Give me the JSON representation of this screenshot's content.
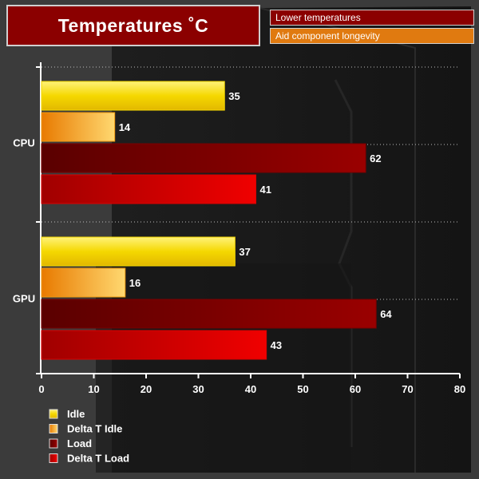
{
  "title": "Temperatures ˚C",
  "notes": [
    "Lower temperatures",
    "Aid component longevity"
  ],
  "colors": {
    "background": "#3b3b3b",
    "title_bg": "#8b0000",
    "note_orange": "#e07a10"
  },
  "chart_data": {
    "type": "bar",
    "orientation": "horizontal",
    "categories": [
      "CPU",
      "GPU"
    ],
    "series": [
      {
        "name": "Idle",
        "values": [
          35,
          37
        ],
        "color": "#f5d800"
      },
      {
        "name": "Delta T Idle",
        "values": [
          14,
          16
        ],
        "color": "#f09a10"
      },
      {
        "name": "Load",
        "values": [
          62,
          64
        ],
        "color": "#7a0000"
      },
      {
        "name": "Delta T Load",
        "values": [
          41,
          43
        ],
        "color": "#d80000"
      }
    ],
    "xlim": [
      0,
      80
    ],
    "xticks": [
      0,
      10,
      20,
      30,
      40,
      50,
      60,
      70,
      80
    ],
    "grid": true,
    "legend_position": "bottom-left",
    "data_labels": true
  }
}
